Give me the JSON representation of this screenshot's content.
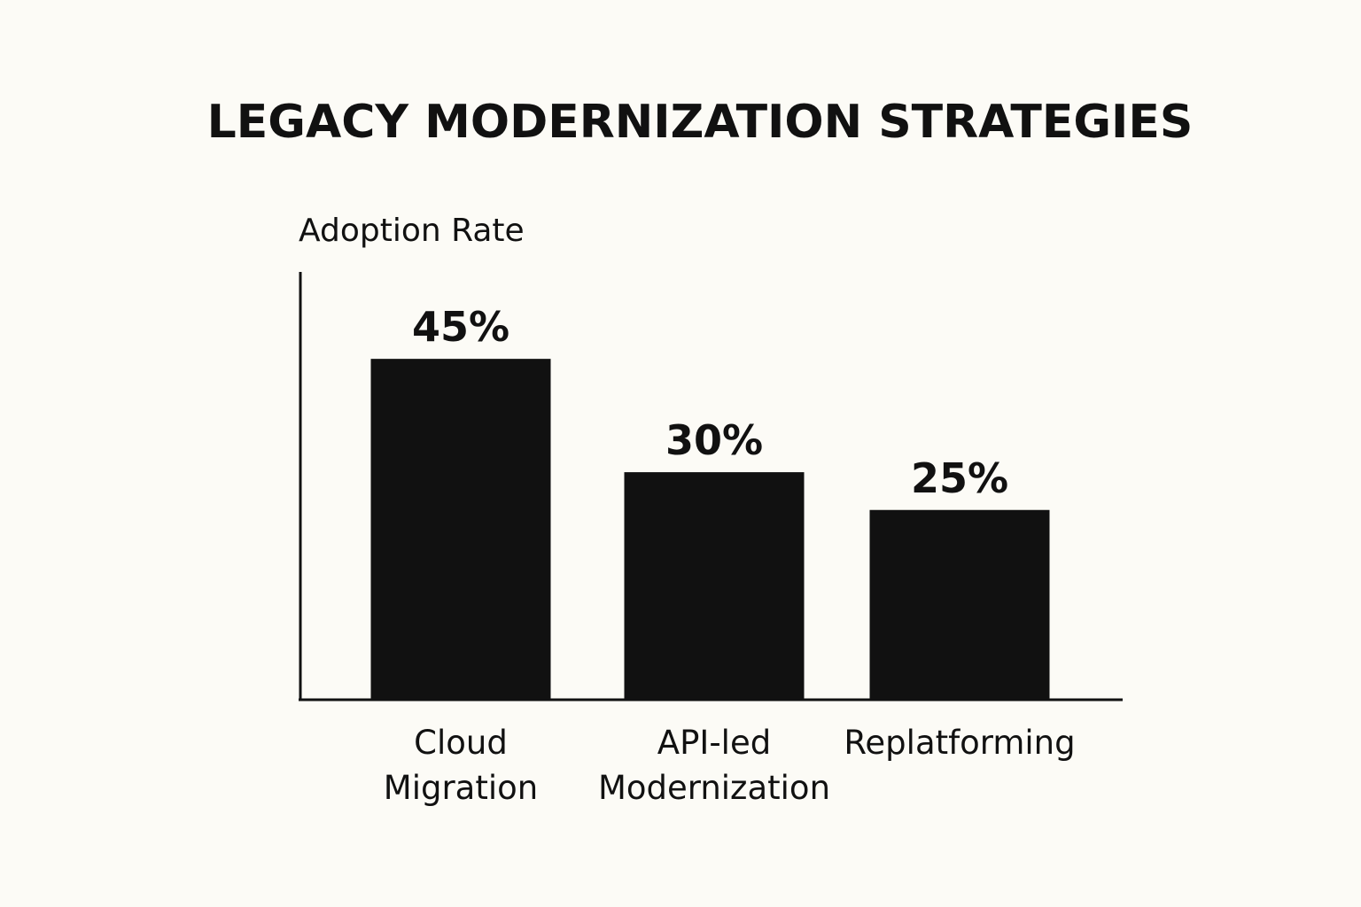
{
  "chart_data": {
    "type": "bar",
    "title": "LEGACY MODERNIZATION STRATEGIES",
    "ylabel": "Adoption Rate",
    "xlabel": "",
    "categories": [
      [
        "Cloud",
        "Migration"
      ],
      [
        "API-led",
        "Modernization"
      ],
      [
        "Replatforming"
      ]
    ],
    "values": [
      45,
      30,
      25
    ],
    "value_labels": [
      "45%",
      "30%",
      "25%"
    ],
    "unit": "%",
    "ylim": [
      0,
      55
    ],
    "grid": false,
    "legend": "none",
    "colors": {
      "bar": "#111111",
      "axis": "#111111",
      "text": "#111111",
      "background": "#fcfbf6"
    }
  }
}
